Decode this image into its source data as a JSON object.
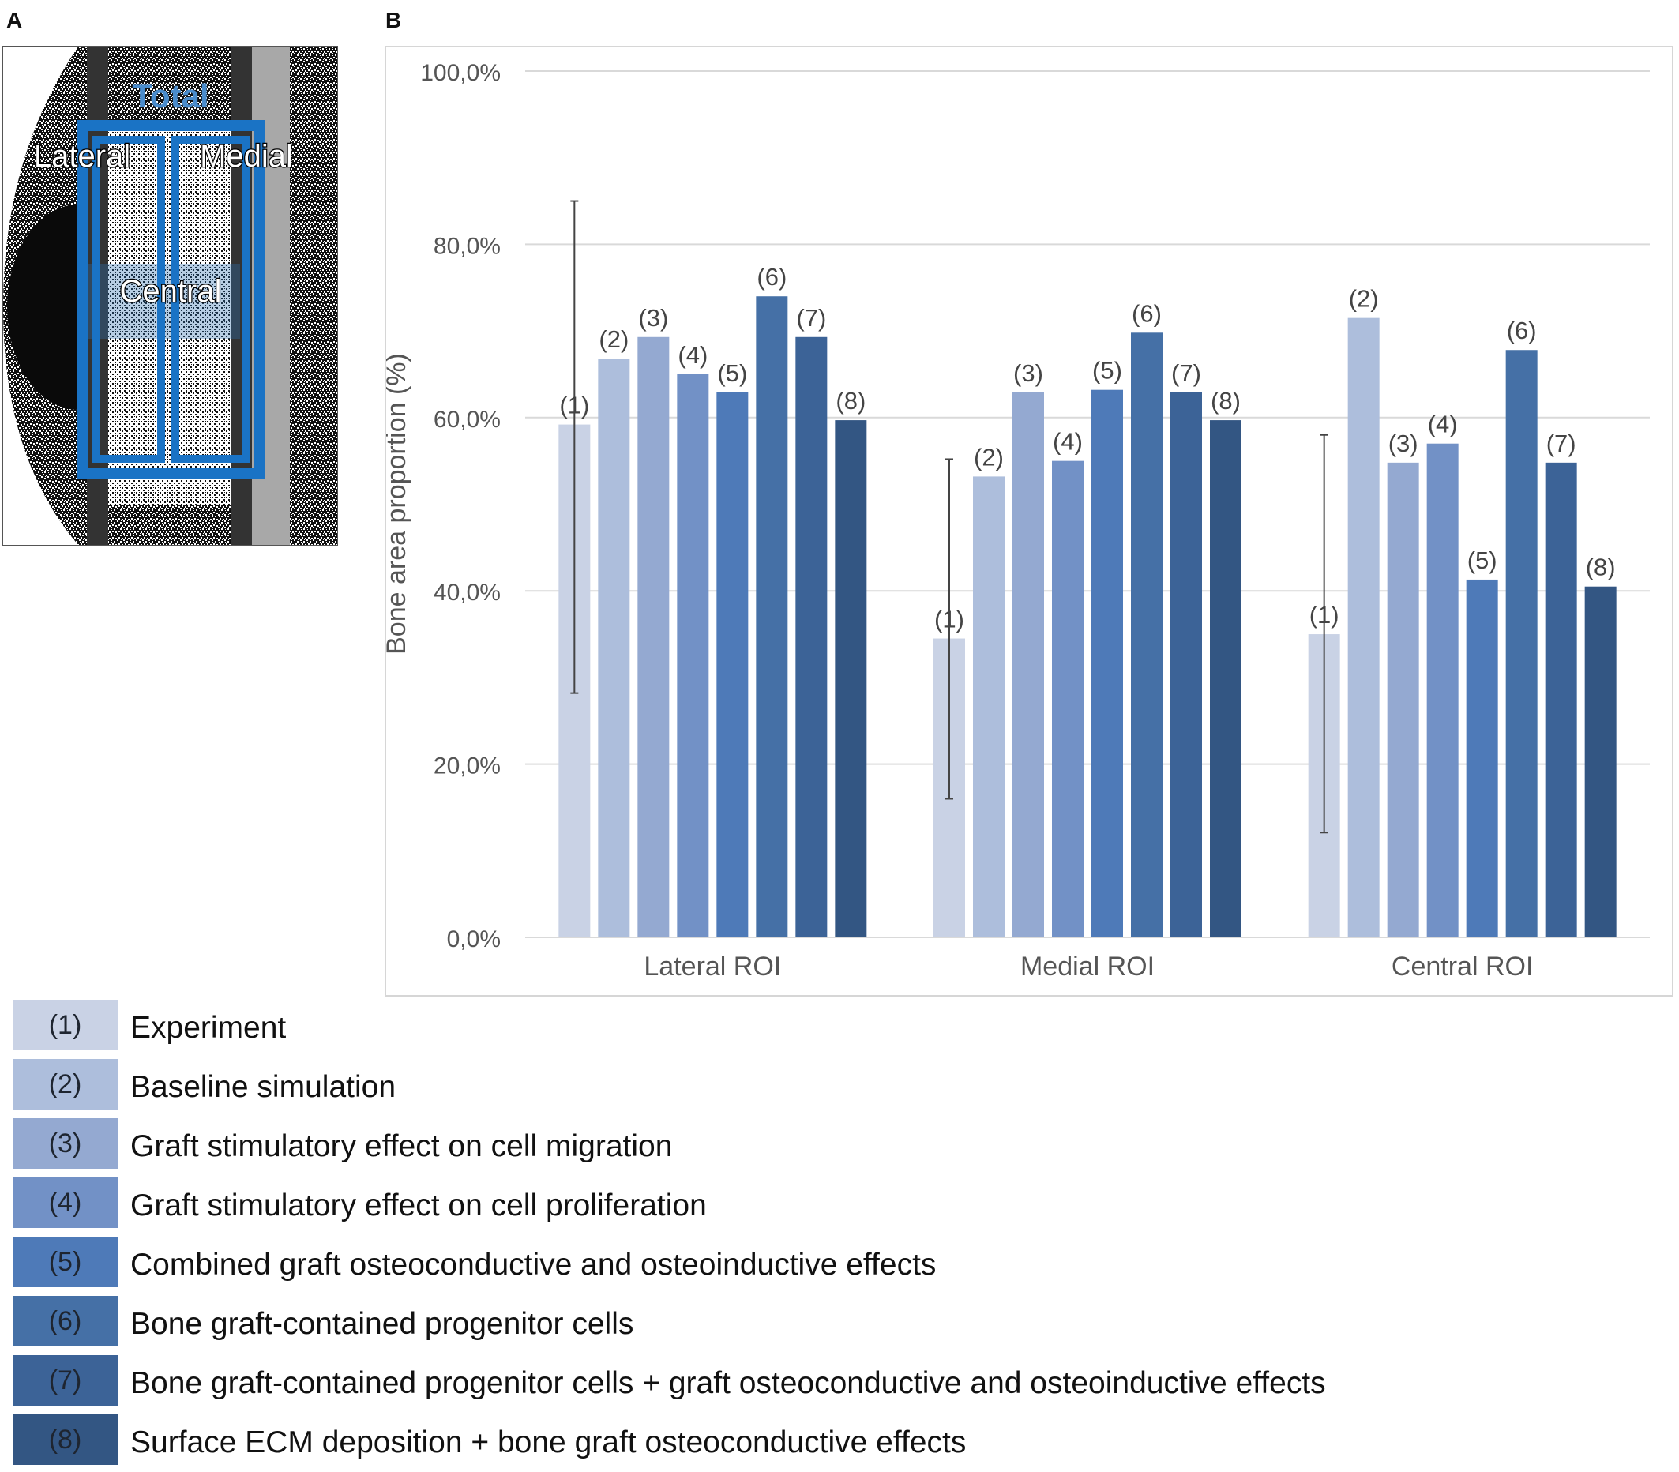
{
  "panel_labels": {
    "a": "A",
    "b": "B"
  },
  "roi_labels": {
    "total": "Total",
    "lateral": "Lateral",
    "medial": "Medial",
    "central": "Central"
  },
  "chart_data": {
    "type": "bar",
    "ylabel": "Bone area proportion (%)",
    "xlabel": "",
    "ylim": [
      0,
      100
    ],
    "yticks": [
      0,
      20,
      40,
      60,
      80,
      100
    ],
    "ytick_labels": [
      "0,0%",
      "20,0%",
      "40,0%",
      "60,0%",
      "80,0%",
      "100,0%"
    ],
    "grid": true,
    "categories": [
      "Lateral ROI",
      "Medial ROI",
      "Central ROI"
    ],
    "bar_labels": [
      "(1)",
      "(2)",
      "(3)",
      "(4)",
      "(5)",
      "(6)",
      "(7)",
      "(8)"
    ],
    "colors": [
      "#c9d2e5",
      "#adbedc",
      "#94a9d1",
      "#7291c6",
      "#4e7ab8",
      "#4570a6",
      "#3c6397",
      "#335683"
    ],
    "series": [
      {
        "name": "(1)",
        "values": [
          59.2,
          34.5,
          35.0
        ],
        "error_low": [
          28.2,
          16.0,
          12.1
        ],
        "error_high": [
          85.0,
          55.2,
          58.0
        ]
      },
      {
        "name": "(2)",
        "values": [
          66.8,
          53.2,
          71.5
        ]
      },
      {
        "name": "(3)",
        "values": [
          69.3,
          62.9,
          54.8
        ]
      },
      {
        "name": "(4)",
        "values": [
          65.0,
          55.0,
          57.0
        ]
      },
      {
        "name": "(5)",
        "values": [
          62.9,
          63.2,
          41.3
        ]
      },
      {
        "name": "(6)",
        "values": [
          74.0,
          69.8,
          67.8
        ]
      },
      {
        "name": "(7)",
        "values": [
          69.3,
          62.9,
          54.8
        ]
      },
      {
        "name": "(8)",
        "values": [
          59.7,
          59.7,
          40.5
        ]
      }
    ]
  },
  "legend": [
    {
      "key": "(1)",
      "text": "Experiment"
    },
    {
      "key": "(2)",
      "text": "Baseline simulation"
    },
    {
      "key": "(3)",
      "text": "Graft stimulatory effect on cell migration"
    },
    {
      "key": "(4)",
      "text": "Graft stimulatory effect on cell proliferation"
    },
    {
      "key": "(5)",
      "text": "Combined graft osteoconductive and osteoinductive effects"
    },
    {
      "key": "(6)",
      "text": "Bone graft-contained progenitor cells"
    },
    {
      "key": "(7)",
      "text": "Bone graft-contained progenitor cells + graft osteoconductive and osteoinductive effects"
    },
    {
      "key": "(8)",
      "text": "Surface ECM deposition + bone graft osteoconductive effects"
    }
  ]
}
